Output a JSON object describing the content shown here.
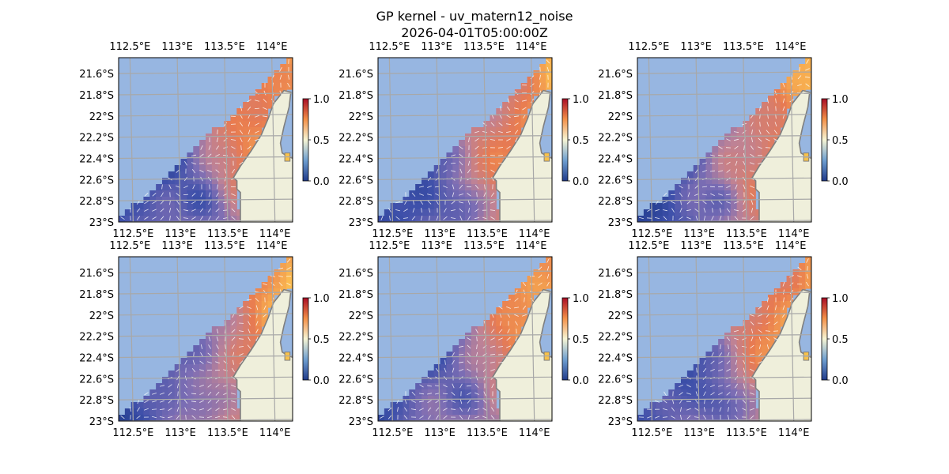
{
  "figure": {
    "title_line1": "GP kernel - uv_matern12_noise",
    "title_line2": "2026-04-01T05:00:00Z"
  },
  "chart_data": {
    "type": "heatmap",
    "panel_count": 6,
    "grid": true,
    "xlim": [
      112.38,
      114.22
    ],
    "ylim": [
      -23.0,
      -21.45
    ],
    "x_ticks": [
      112.5,
      113.0,
      113.5,
      114.0
    ],
    "x_tick_labels": [
      "112.5°E",
      "113°E",
      "113.5°E",
      "114°E"
    ],
    "y_ticks": [
      -21.6,
      -21.8,
      -22.0,
      -22.2,
      -22.4,
      -22.6,
      -22.8,
      -23.0
    ],
    "y_tick_labels": [
      "21.6°S",
      "21.8°S",
      "22°S",
      "22.2°S",
      "22.4°S",
      "22.6°S",
      "22.8°S",
      "23°S"
    ],
    "colorbar": {
      "range": [
        0.0,
        1.0
      ],
      "ticks": [
        0.0,
        0.5,
        1.0
      ],
      "tick_labels": [
        "0.0",
        "0.5",
        "1.0"
      ],
      "colormap": "RdYlBu_r-like"
    },
    "colors": {
      "land": "#efefdb",
      "ocean_nodata": "#97b6e1",
      "coast": "#7f7f7f",
      "gridline": "#a8a8a8",
      "vectors": "#ffffff"
    }
  }
}
